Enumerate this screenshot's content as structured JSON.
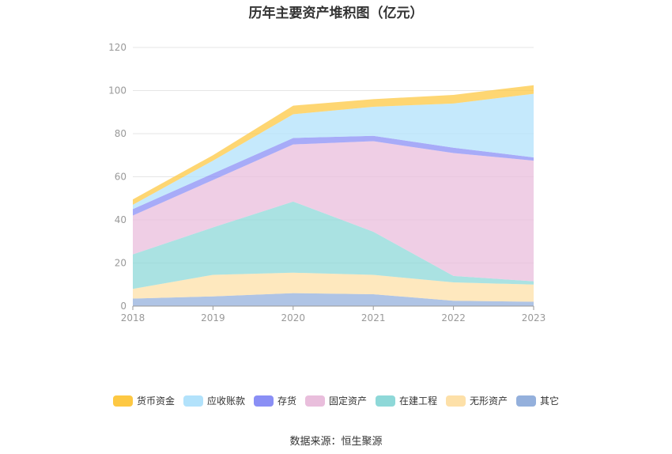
{
  "chart_data": {
    "type": "area",
    "stacked": true,
    "title": "历年主要资产堆积图（亿元）",
    "x": [
      "2018",
      "2019",
      "2020",
      "2021",
      "2022",
      "2023"
    ],
    "ylim": [
      0,
      120
    ],
    "yticks": [
      "0",
      "20",
      "40",
      "60",
      "80",
      "100",
      "120"
    ],
    "grid": true,
    "legend_position": "bottom",
    "series": [
      {
        "name": "其它",
        "color": "#94b0dc",
        "values": [
          3.5,
          4.5,
          6.0,
          5.5,
          2.5,
          2.0
        ]
      },
      {
        "name": "无形资产",
        "color": "#fde0a8",
        "values": [
          4.5,
          10.0,
          9.5,
          9.0,
          8.5,
          8.0
        ]
      },
      {
        "name": "在建工程",
        "color": "#8ed8d8",
        "values": [
          16.0,
          22.0,
          33.0,
          20.0,
          3.0,
          1.5
        ]
      },
      {
        "name": "固定资产",
        "color": "#e9bedc",
        "values": [
          18.0,
          22.0,
          26.5,
          42.0,
          57.0,
          56.0
        ]
      },
      {
        "name": "存货",
        "color": "#8a8ff5",
        "values": [
          3.0,
          3.0,
          3.0,
          2.5,
          2.5,
          1.5
        ]
      },
      {
        "name": "应收账款",
        "color": "#b2e2fb",
        "values": [
          2.0,
          6.0,
          11.0,
          13.5,
          20.5,
          29.5
        ]
      },
      {
        "name": "货币资金",
        "color": "#fdc843",
        "values": [
          2.5,
          2.5,
          4.0,
          3.5,
          4.0,
          4.0
        ]
      }
    ],
    "legend_order": [
      "货币资金",
      "应收账款",
      "存货",
      "固定资产",
      "在建工程",
      "无形资产",
      "其它"
    ]
  },
  "source": "数据来源：恒生聚源"
}
